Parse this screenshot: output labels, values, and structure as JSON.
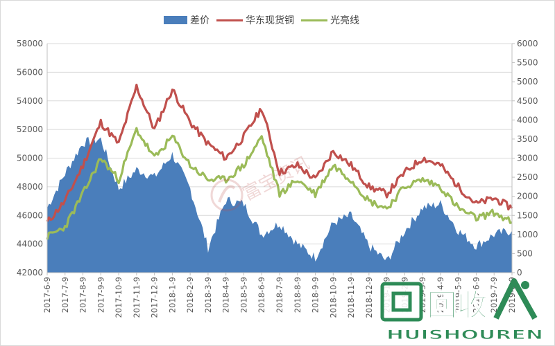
{
  "legend": {
    "area_label": "差价",
    "line1_label": "华东现货铜",
    "line2_label": "光亮线"
  },
  "watermark": {
    "center_text": "富宝资讯",
    "corner_icon_text": "回收",
    "corner_brand_text": "HUISHOUREN"
  },
  "colors": {
    "area": "#4a7ebb",
    "line1": "#c0504d",
    "line2": "#9bbb59",
    "grid": "#d9d9d9",
    "axis_text": "#595959"
  },
  "chart_data": {
    "type": "line",
    "categories": [
      "2017-6-9",
      "2017-7-9",
      "2017-8-9",
      "2017-9-9",
      "2017-10-9",
      "2017-11-9",
      "2017-12-9",
      "2018-1-9",
      "2018-2-9",
      "2018-3-9",
      "2018-4-9",
      "2018-5-9",
      "2018-6-9",
      "2018-7-9",
      "2018-8-9",
      "2018-9-9",
      "2018-10-9",
      "2018-11-9",
      "2018-12-9",
      "2019-1-9",
      "2019-2-9",
      "2019-3-9",
      "2019-4-9",
      "2019-5-9",
      "2019-6-9",
      "2019-7-9",
      "2019-8-9"
    ],
    "left_axis": {
      "min": 42000,
      "max": 58000,
      "ticks": [
        42000,
        44000,
        46000,
        48000,
        50000,
        52000,
        54000,
        56000,
        58000
      ]
    },
    "right_axis": {
      "min": 0,
      "max": 6000,
      "ticks": [
        0,
        500,
        1000,
        1500,
        2000,
        2500,
        3000,
        3500,
        4000,
        4500,
        5000,
        5500,
        6000
      ]
    },
    "series": [
      {
        "name": "差价",
        "kind": "area",
        "axis": "right",
        "values": [
          1700,
          2600,
          3400,
          3500,
          2200,
          2700,
          2500,
          3100,
          2200,
          650,
          1900,
          1800,
          1000,
          1300,
          750,
          400,
          1300,
          1500,
          700,
          300,
          1100,
          1700,
          1800,
          1100,
          700,
          1000,
          1100
        ]
      },
      {
        "name": "华东现货铜",
        "kind": "line",
        "axis": "left",
        "values": [
          45500,
          47000,
          49500,
          52500,
          51000,
          55000,
          52000,
          54800,
          52500,
          51000,
          50000,
          51500,
          53500,
          49000,
          49500,
          48500,
          50500,
          49500,
          48000,
          47500,
          49000,
          50000,
          49500,
          48000,
          46800,
          47200,
          46500
        ]
      },
      {
        "name": "光亮线",
        "kind": "line",
        "axis": "left",
        "values": [
          44500,
          45200,
          47500,
          50000,
          48500,
          52000,
          50000,
          51500,
          49500,
          48500,
          48500,
          49500,
          51500,
          47500,
          48500,
          47500,
          49500,
          48500,
          47000,
          46500,
          48000,
          48500,
          48000,
          46500,
          45800,
          46200,
          45500
        ]
      }
    ],
    "grid": "horizontal",
    "legend_position": "top-center"
  }
}
